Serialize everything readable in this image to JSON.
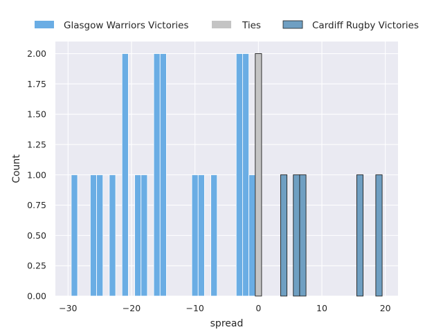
{
  "chart_data": {
    "type": "bar",
    "xlabel": "spread",
    "ylabel": "Count",
    "xlim": [
      -32,
      22
    ],
    "ylim": [
      0,
      2.1
    ],
    "x_ticks": [
      -30,
      -20,
      -10,
      0,
      10,
      20
    ],
    "x_tick_labels": [
      "−30",
      "−20",
      "−10",
      "0",
      "10",
      "20"
    ],
    "y_ticks": [
      0,
      0.25,
      0.5,
      0.75,
      1.0,
      1.25,
      1.5,
      1.75,
      2.0
    ],
    "y_tick_labels": [
      "0.00",
      "0.25",
      "0.50",
      "0.75",
      "1.00",
      "1.25",
      "1.50",
      "1.75",
      "2.00"
    ],
    "grid": true,
    "legend_position": "top",
    "series": [
      {
        "name": "Glasgow Warriors Victories",
        "color": "#6aade4",
        "x": [
          -29,
          -26,
          -25,
          -23,
          -21,
          -19,
          -18,
          -16,
          -15,
          -10,
          -9,
          -7,
          -3,
          -2,
          -1
        ],
        "values": [
          1,
          1,
          1,
          1,
          2,
          1,
          1,
          2,
          2,
          1,
          1,
          1,
          2,
          2,
          1
        ]
      },
      {
        "name": "Ties",
        "color": "#c4c4c4",
        "x": [
          0
        ],
        "values": [
          2
        ]
      },
      {
        "name": "Cardiff Rugby Victories",
        "color": "#6f9fc2",
        "x": [
          4,
          6,
          7,
          16,
          19
        ],
        "values": [
          1,
          1,
          1,
          1,
          1
        ]
      }
    ]
  }
}
